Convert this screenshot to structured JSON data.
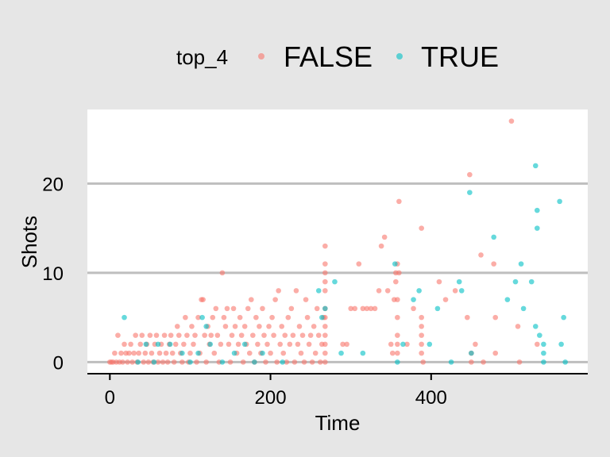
{
  "chart_data": {
    "type": "scatter",
    "xlabel": "Time",
    "ylabel": "Shots",
    "xlim": [
      -28,
      595
    ],
    "ylim": [
      -1.3,
      28.3
    ],
    "x_ticks": [
      0,
      200,
      400
    ],
    "y_ticks": [
      0,
      10,
      20
    ],
    "grid": "horizontal-major",
    "legend": {
      "title": "top_4",
      "placement": "top",
      "entries": [
        {
          "label": "FALSE",
          "color": "#f8766d"
        },
        {
          "label": "TRUE",
          "color": "#00bfc4"
        }
      ]
    },
    "series": [
      {
        "name": "FALSE",
        "color": "#f8766d",
        "points": [
          [
            0,
            0
          ],
          [
            2,
            0
          ],
          [
            4,
            0
          ],
          [
            6,
            1
          ],
          [
            8,
            0
          ],
          [
            10,
            3
          ],
          [
            12,
            0
          ],
          [
            14,
            1
          ],
          [
            16,
            0
          ],
          [
            18,
            2
          ],
          [
            20,
            1
          ],
          [
            22,
            0
          ],
          [
            24,
            1
          ],
          [
            26,
            2
          ],
          [
            28,
            0
          ],
          [
            30,
            1
          ],
          [
            32,
            3
          ],
          [
            34,
            0
          ],
          [
            36,
            1
          ],
          [
            38,
            2
          ],
          [
            40,
            3
          ],
          [
            42,
            0
          ],
          [
            44,
            1
          ],
          [
            46,
            2
          ],
          [
            48,
            0
          ],
          [
            50,
            3
          ],
          [
            52,
            1
          ],
          [
            54,
            0
          ],
          [
            56,
            2
          ],
          [
            58,
            3
          ],
          [
            60,
            0
          ],
          [
            62,
            1
          ],
          [
            64,
            2
          ],
          [
            66,
            0
          ],
          [
            68,
            3
          ],
          [
            70,
            1
          ],
          [
            72,
            0
          ],
          [
            74,
            2
          ],
          [
            76,
            3
          ],
          [
            78,
            1
          ],
          [
            80,
            0
          ],
          [
            82,
            2
          ],
          [
            84,
            4
          ],
          [
            86,
            3
          ],
          [
            88,
            1
          ],
          [
            90,
            0
          ],
          [
            92,
            2
          ],
          [
            94,
            5
          ],
          [
            96,
            3
          ],
          [
            98,
            0
          ],
          [
            100,
            1
          ],
          [
            102,
            4
          ],
          [
            104,
            2
          ],
          [
            106,
            3
          ],
          [
            108,
            0
          ],
          [
            110,
            5
          ],
          [
            112,
            1
          ],
          [
            114,
            7
          ],
          [
            116,
            7
          ],
          [
            118,
            3
          ],
          [
            120,
            0
          ],
          [
            122,
            4
          ],
          [
            124,
            2
          ],
          [
            126,
            3
          ],
          [
            128,
            5
          ],
          [
            130,
            1
          ],
          [
            132,
            6
          ],
          [
            134,
            3
          ],
          [
            136,
            0
          ],
          [
            138,
            2
          ],
          [
            140,
            10
          ],
          [
            142,
            5
          ],
          [
            144,
            4
          ],
          [
            146,
            6
          ],
          [
            148,
            2
          ],
          [
            150,
            0
          ],
          [
            152,
            3
          ],
          [
            154,
            6
          ],
          [
            156,
            4
          ],
          [
            158,
            1
          ],
          [
            160,
            2
          ],
          [
            162,
            5
          ],
          [
            164,
            3
          ],
          [
            166,
            0
          ],
          [
            168,
            4
          ],
          [
            170,
            2
          ],
          [
            172,
            6
          ],
          [
            174,
            1
          ],
          [
            176,
            7
          ],
          [
            178,
            3
          ],
          [
            180,
            0
          ],
          [
            182,
            5
          ],
          [
            184,
            2
          ],
          [
            186,
            4
          ],
          [
            188,
            1
          ],
          [
            190,
            6
          ],
          [
            192,
            3
          ],
          [
            194,
            0
          ],
          [
            196,
            2
          ],
          [
            198,
            4
          ],
          [
            200,
            1
          ],
          [
            202,
            5
          ],
          [
            204,
            3
          ],
          [
            206,
            7
          ],
          [
            208,
            0
          ],
          [
            210,
            8
          ],
          [
            212,
            2
          ],
          [
            214,
            4
          ],
          [
            216,
            1
          ],
          [
            218,
            3
          ],
          [
            220,
            0
          ],
          [
            222,
            5
          ],
          [
            224,
            2
          ],
          [
            226,
            6
          ],
          [
            228,
            3
          ],
          [
            230,
            0
          ],
          [
            232,
            8
          ],
          [
            234,
            2
          ],
          [
            236,
            4
          ],
          [
            238,
            1
          ],
          [
            240,
            3
          ],
          [
            242,
            0
          ],
          [
            244,
            7
          ],
          [
            246,
            5
          ],
          [
            248,
            2
          ],
          [
            250,
            3
          ],
          [
            252,
            0
          ],
          [
            254,
            4
          ],
          [
            256,
            1
          ],
          [
            258,
            6
          ],
          [
            260,
            3
          ],
          [
            262,
            0
          ],
          [
            264,
            2
          ],
          [
            266,
            5
          ],
          [
            268,
            13
          ],
          [
            268,
            11
          ],
          [
            268,
            10
          ],
          [
            268,
            9
          ],
          [
            268,
            8
          ],
          [
            268,
            6
          ],
          [
            268,
            5
          ],
          [
            268,
            4
          ],
          [
            268,
            3
          ],
          [
            268,
            2
          ],
          [
            268,
            1
          ],
          [
            268,
            0
          ],
          [
            290,
            2
          ],
          [
            295,
            2
          ],
          [
            300,
            6
          ],
          [
            305,
            6
          ],
          [
            310,
            11
          ],
          [
            315,
            6
          ],
          [
            320,
            6
          ],
          [
            325,
            6
          ],
          [
            330,
            6
          ],
          [
            335,
            8
          ],
          [
            338,
            13
          ],
          [
            342,
            14
          ],
          [
            346,
            8
          ],
          [
            350,
            2
          ],
          [
            352,
            1
          ],
          [
            354,
            7
          ],
          [
            356,
            10
          ],
          [
            356,
            9
          ],
          [
            358,
            11
          ],
          [
            358,
            7
          ],
          [
            358,
            5
          ],
          [
            358,
            3
          ],
          [
            358,
            2
          ],
          [
            358,
            1
          ],
          [
            360,
            18
          ],
          [
            360,
            10
          ],
          [
            370,
            2
          ],
          [
            378,
            6
          ],
          [
            388,
            15
          ],
          [
            388,
            5
          ],
          [
            388,
            4
          ],
          [
            388,
            3
          ],
          [
            388,
            2
          ],
          [
            388,
            1
          ],
          [
            390,
            0
          ],
          [
            410,
            9
          ],
          [
            418,
            7
          ],
          [
            430,
            8
          ],
          [
            445,
            5
          ],
          [
            448,
            21
          ],
          [
            450,
            1
          ],
          [
            450,
            0
          ],
          [
            455,
            2
          ],
          [
            462,
            12
          ],
          [
            465,
            0
          ],
          [
            478,
            11
          ],
          [
            480,
            5
          ],
          [
            480,
            1
          ],
          [
            500,
            27
          ],
          [
            508,
            4
          ],
          [
            510,
            0
          ],
          [
            532,
            2
          ]
        ]
      },
      {
        "name": "TRUE",
        "color": "#00bfc4",
        "points": [
          [
            18,
            5
          ],
          [
            35,
            0
          ],
          [
            45,
            2
          ],
          [
            55,
            0
          ],
          [
            60,
            2
          ],
          [
            75,
            2
          ],
          [
            90,
            1
          ],
          [
            100,
            0
          ],
          [
            110,
            1
          ],
          [
            115,
            5
          ],
          [
            120,
            4
          ],
          [
            125,
            2
          ],
          [
            140,
            0
          ],
          [
            155,
            1
          ],
          [
            168,
            2
          ],
          [
            180,
            0
          ],
          [
            190,
            1
          ],
          [
            215,
            0
          ],
          [
            260,
            8
          ],
          [
            264,
            5
          ],
          [
            268,
            6
          ],
          [
            280,
            9
          ],
          [
            288,
            1
          ],
          [
            315,
            1
          ],
          [
            355,
            11
          ],
          [
            358,
            0
          ],
          [
            365,
            2
          ],
          [
            378,
            7
          ],
          [
            385,
            8
          ],
          [
            398,
            2
          ],
          [
            408,
            6
          ],
          [
            425,
            0
          ],
          [
            435,
            9
          ],
          [
            438,
            8
          ],
          [
            450,
            1
          ],
          [
            448,
            19
          ],
          [
            478,
            14
          ],
          [
            495,
            7
          ],
          [
            505,
            9
          ],
          [
            512,
            11
          ],
          [
            515,
            6
          ],
          [
            525,
            9
          ],
          [
            530,
            4
          ],
          [
            530,
            22
          ],
          [
            532,
            17
          ],
          [
            532,
            15
          ],
          [
            535,
            3
          ],
          [
            540,
            2
          ],
          [
            540,
            1
          ],
          [
            540,
            0
          ],
          [
            560,
            18
          ],
          [
            562,
            2
          ],
          [
            565,
            5
          ],
          [
            567,
            0
          ]
        ]
      }
    ]
  }
}
